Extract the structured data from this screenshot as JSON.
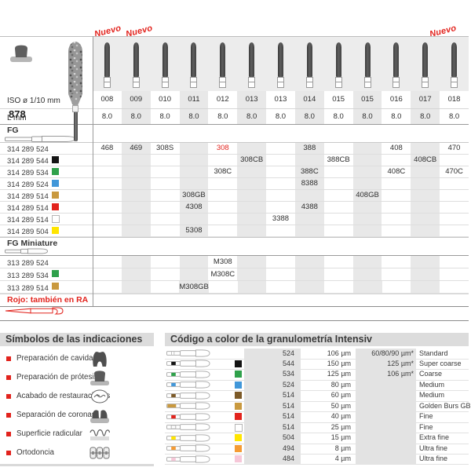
{
  "accent_red": "#e2231d",
  "palette": {
    "black": "#141414",
    "green": "#2fa14b",
    "blue": "#4197d9",
    "gold": "#c9993f",
    "red": "#e2231d",
    "white": "#ffffff",
    "yellow": "#ffe500",
    "brown": "#7c5a28",
    "orange": "#f59b33",
    "pink": "#f6c7d8"
  },
  "catalog": {
    "figure_number": "878",
    "new_label": "Nuevo",
    "new_positions": [
      122,
      162,
      549
    ],
    "iso_label": "ISO ø 1/10 mm",
    "l_label": "L mm",
    "fg_label": "FG",
    "fg_miniature_label": "FG Miniature",
    "note_red": "Rojo: también en RA",
    "columns": [
      "008",
      "009",
      "010",
      "011",
      "012",
      "013",
      "013",
      "014",
      "015",
      "015",
      "016",
      "017",
      "018"
    ],
    "l_values": [
      "8.0",
      "8.0",
      "8.0",
      "8.0",
      "8.0",
      "8.0",
      "8.0",
      "8.0",
      "8.0",
      "8.0",
      "8.0",
      "8.0",
      "8.0"
    ],
    "fg_rows": [
      {
        "code": "314 289 524",
        "color": null,
        "cells": [
          {
            "col": 0,
            "text": "468"
          },
          {
            "col": 1,
            "text": "469"
          },
          {
            "col": 2,
            "text": "308S"
          },
          {
            "col": 4,
            "text": "308",
            "red": true
          },
          {
            "col": 7,
            "text": "388"
          },
          {
            "col": 10,
            "text": "408"
          },
          {
            "col": 12,
            "text": "470"
          }
        ]
      },
      {
        "code": "314 289 544",
        "color": "black",
        "cells": [
          {
            "col": 5,
            "text": "308CB"
          },
          {
            "col": 8,
            "text": "388CB"
          },
          {
            "col": 11,
            "text": "408CB"
          }
        ]
      },
      {
        "code": "314 289 534",
        "color": "green",
        "cells": [
          {
            "col": 4,
            "text": "308C"
          },
          {
            "col": 7,
            "text": "388C"
          },
          {
            "col": 10,
            "text": "408C"
          },
          {
            "col": 12,
            "text": "470C"
          }
        ]
      },
      {
        "code": "314 289 524",
        "color": "blue",
        "cells": [
          {
            "col": 7,
            "text": "8388"
          }
        ]
      },
      {
        "code": "314 289 514",
        "color": "gold",
        "cells": [
          {
            "col": 3,
            "text": "308GB"
          },
          {
            "col": 9,
            "text": "408GB"
          }
        ]
      },
      {
        "code": "314 289 514",
        "color": "red",
        "cells": [
          {
            "col": 3,
            "text": "4308"
          },
          {
            "col": 7,
            "text": "4388"
          }
        ]
      },
      {
        "code": "314 289 514",
        "color": "white",
        "cells": [
          {
            "col": 6,
            "text": "3388"
          }
        ]
      },
      {
        "code": "314 289 504",
        "color": "yellow",
        "cells": [
          {
            "col": 3,
            "text": "5308"
          }
        ]
      }
    ],
    "miniature_rows": [
      {
        "code": "313 289 524",
        "color": null,
        "cells": [
          {
            "col": 4,
            "text": "M308"
          }
        ]
      },
      {
        "code": "313 289 534",
        "color": "green",
        "cells": [
          {
            "col": 4,
            "text": "M308C"
          }
        ]
      },
      {
        "code": "313 289 514",
        "color": "gold",
        "cells": [
          {
            "col": 3,
            "text": "M308GB"
          }
        ]
      }
    ]
  },
  "symbols_panel": {
    "title": "Símbolos de las indicaciones",
    "items": [
      {
        "label": "Preparación de cavidades",
        "icon": "cavity-preparation-icon"
      },
      {
        "label": "Preparación de prótesis",
        "icon": "prosthesis-preparation-icon"
      },
      {
        "label": "Acabado de restauraciones",
        "icon": "restoration-finishing-icon"
      },
      {
        "label": "Separación de coronas",
        "icon": "crown-separation-icon"
      },
      {
        "label": "Superficie radicular",
        "icon": "root-surface-icon"
      },
      {
        "label": "Ortodoncia",
        "icon": "orthodontics-icon"
      }
    ]
  },
  "grit_panel": {
    "title": "Código a color de la granulometría Intensiv",
    "rows": [
      {
        "code": "524",
        "size": "106 µm",
        "alt": "60/80/90 µm*",
        "name": "Standard",
        "color": null
      },
      {
        "code": "544",
        "size": "150 µm",
        "alt": "125 µm*",
        "name": "Super coarse",
        "color": "black"
      },
      {
        "code": "534",
        "size": "125 µm",
        "alt": "106 µm*",
        "name": "Coarse",
        "color": "green"
      },
      {
        "code": "524",
        "size": "80 µm",
        "alt": "",
        "name": "Medium",
        "color": "blue"
      },
      {
        "code": "514",
        "size": "60 µm",
        "alt": "",
        "name": "Medium",
        "color": "brown"
      },
      {
        "code": "514",
        "size": "50 µm",
        "alt": "",
        "name": "Golden Burs GB",
        "color": "gold",
        "wide_band": true
      },
      {
        "code": "514",
        "size": "40 µm",
        "alt": "",
        "name": "Fine",
        "color": "red"
      },
      {
        "code": "514",
        "size": "25 µm",
        "alt": "",
        "name": "Fine",
        "color": "white"
      },
      {
        "code": "504",
        "size": "15 µm",
        "alt": "",
        "name": "Extra fine",
        "color": "yellow"
      },
      {
        "code": "494",
        "size": "8 µm",
        "alt": "",
        "name": "Ultra fine",
        "color": "orange"
      },
      {
        "code": "484",
        "size": "4 µm",
        "alt": "",
        "name": "Ultra fine",
        "color": "pink"
      }
    ]
  }
}
